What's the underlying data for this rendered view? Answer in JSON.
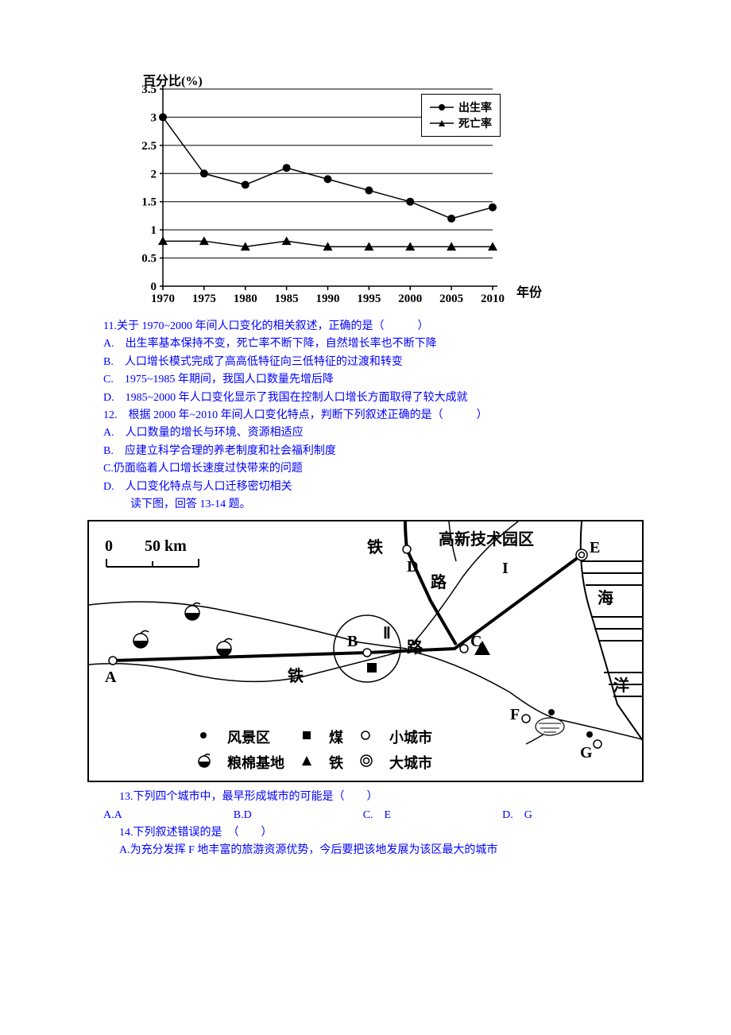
{
  "chart": {
    "type": "line-scatter",
    "y_title": "百分比(%)",
    "x_title": "年份",
    "x_categories": [
      "1970",
      "1975",
      "1980",
      "1985",
      "1990",
      "1995",
      "2000",
      "2005",
      "2010"
    ],
    "y_ticks": [
      "0",
      "0.5",
      "1",
      "1.5",
      "2",
      "2.5",
      "3",
      "3.5"
    ],
    "ylim_min": 0,
    "ylim_max": 3.5,
    "series": [
      {
        "name": "出生率",
        "marker": "circle",
        "color": "#000000",
        "values": [
          3.0,
          2.0,
          1.8,
          2.1,
          1.9,
          1.7,
          1.5,
          1.2,
          1.4
        ]
      },
      {
        "name": "死亡率",
        "marker": "triangle",
        "color": "#000000",
        "values": [
          0.8,
          0.8,
          0.7,
          0.8,
          0.7,
          0.7,
          0.7,
          0.7,
          0.7
        ]
      }
    ],
    "gridline_color": "#000000",
    "axis_color": "#000000",
    "tick_fontsize": 14,
    "title_fontsize": 16,
    "marker_size": 6,
    "line_width": 1.5
  },
  "q11": {
    "stem": "11.关于 1970~2000 年间人口变化的相关叙述，正确的是（　　　）",
    "A": "A.　出生率基本保持不变，死亡率不断下降，自然增长率也不断下降",
    "B": "B.　人口增长模式完成了高高低特征向三低特征的过渡和转变",
    "C": "C.　1975~1985 年期间，我国人口数量先增后降",
    "D": "D.　1985~2000 年人口变化显示了我国在控制人口增长方面取得了较大成就"
  },
  "q12": {
    "stem": "12.　根据 2000 年~2010 年间人口变化特点，判断下列叙述正确的是（　　　）",
    "A": "A.　人口数量的增长与环境、资源相适应",
    "B": "B.　应建立科学合理的养老制度和社会福利制度",
    "C": "C.仍面临着人口增长速度过快带来的问题",
    "D": "D.　人口变化特点与人口迁移密切相关"
  },
  "instr1": "　读下图，回答 13-14 题。",
  "map": {
    "scale_text": "0　　50 km",
    "labels": {
      "gaoxin": "高新技术园区",
      "tie1": "铁",
      "lu1": "路",
      "tie2": "铁",
      "lu2": "路",
      "hai": "海",
      "yang": "洋",
      "A": "A",
      "B": "B",
      "C": "C",
      "D": "D",
      "E": "E",
      "F": "F",
      "G": "G",
      "I": "I",
      "II": "Ⅱ"
    },
    "legend": {
      "scenic": "风景区",
      "coal": "煤",
      "small_city": "小城市",
      "grain_cotton": "粮棉基地",
      "iron": "铁",
      "big_city": "大城市"
    }
  },
  "q13": {
    "stem": "13.下列四个城市中，最早形成城市的可能是（　　）",
    "A": "A.A",
    "B": "B.D",
    "C": "C.　E",
    "D": "D.　G"
  },
  "q14": {
    "stem": "14.下列叙述错误的是　（　　）",
    "A": "A.为充分发挥 F 地丰富的旅游资源优势，今后要把该地发展为该区最大的城市"
  },
  "colors": {
    "text_blue": "#0000ff",
    "black": "#000000",
    "white": "#ffffff"
  }
}
